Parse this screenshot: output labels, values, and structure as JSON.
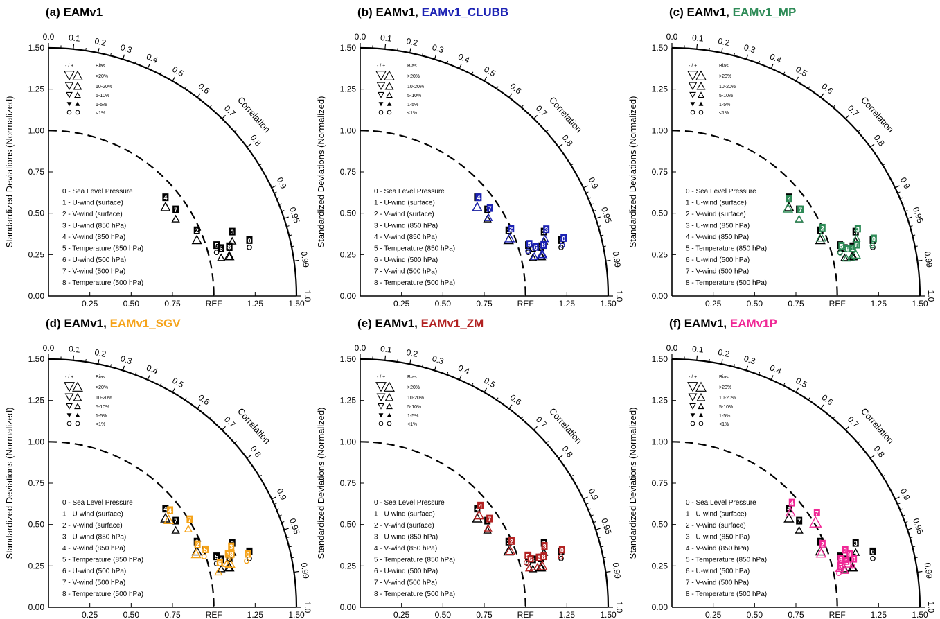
{
  "colors": {
    "ref": "#000000",
    "EAMv1_CLUBB": "#1c22b4",
    "EAMv1_MP": "#2e8b57",
    "EAMv1_SGV": "#f5a31a",
    "EAMv1_ZM": "#b22222",
    "EAMv1P": "#f02896"
  },
  "axis": {
    "ylabel": "Standardized Deviations (Normalized)",
    "yticks": [
      "0.00",
      "0.25",
      "0.50",
      "0.75",
      "1.00",
      "1.25",
      "1.50"
    ],
    "xticks": [
      "0.25",
      "0.50",
      "0.75",
      "REF",
      "1.25",
      "1.50"
    ],
    "correlation_label": "Correlation",
    "correlation_ticks": [
      "0.0",
      "0.1",
      "0.2",
      "0.3",
      "0.4",
      "0.5",
      "0.6",
      "0.7",
      "0.8",
      "0.9",
      "0.95",
      "0.99",
      "1.0"
    ]
  },
  "bias_legend": {
    "header_sign": "- / +",
    "header_bias": "Bias",
    "rows": [
      ">20%",
      "10-20%",
      "5-10%",
      "1-5%",
      "<1%"
    ]
  },
  "variables": [
    "0 - Sea Level Pressure",
    "1 - U-wind (surface)",
    "2 - V-wind (surface)",
    "3 - U-wind (850 hPa)",
    "4 - V-wind (850 hPa)",
    "5 - Temperature (850 hPa)",
    "6 - U-wind (500 hPa)",
    "7 - V-wind (500 hPa)",
    "8 - Temperature (500 hPa)"
  ],
  "panels": [
    {
      "label": "(a) EAMv1",
      "base": "",
      "comp": ""
    },
    {
      "label": "(b) ",
      "base": "EAMv1, ",
      "comp": "EAMv1_CLUBB"
    },
    {
      "label": "(c) ",
      "base": "EAMv1, ",
      "comp": "EAMv1_MP"
    },
    {
      "label": "(d) ",
      "base": "EAMv1, ",
      "comp": "EAMv1_SGV"
    },
    {
      "label": "(e) ",
      "base": "EAMv1, ",
      "comp": "EAMv1_ZM"
    },
    {
      "label": "(f) ",
      "base": "EAMv1, ",
      "comp": "EAMv1P"
    }
  ],
  "chart_data": [
    {
      "type": "scatter",
      "subtype": "taylor_diagram",
      "title": "(a) EAMv1",
      "ylim": [
        0,
        1.5
      ],
      "series": [
        {
          "name": "EAMv1",
          "points": [
            {
              "id": "0",
              "std": 1.25,
              "corr": 0.972,
              "bias": "<1%"
            },
            {
              "id": "1",
              "std": 1.12,
              "corr": 0.977,
              "bias": "5-10%"
            },
            {
              "id": "2",
              "std": 0.96,
              "corr": 0.935,
              "bias": "10-20%"
            },
            {
              "id": "3",
              "std": 1.16,
              "corr": 0.958,
              "bias": "5-10%"
            },
            {
              "id": "4",
              "std": 0.89,
              "corr": 0.795,
              "bias": "10-20%"
            },
            {
              "id": "5",
              "std": 1.05,
              "corr": 0.968,
              "bias": "<1%"
            },
            {
              "id": "6",
              "std": 1.07,
              "corr": 0.976,
              "bias": "5-10%"
            },
            {
              "id": "7",
              "std": 0.9,
              "corr": 0.855,
              "bias": "5-10%"
            },
            {
              "id": "8",
              "std": 1.12,
              "corr": 0.976,
              "bias": "10-20%"
            }
          ]
        }
      ]
    },
    {
      "type": "scatter",
      "subtype": "taylor_diagram",
      "title": "(b) EAMv1, EAMv1_CLUBB",
      "ylim": [
        0,
        1.5
      ],
      "series": [
        {
          "name": "EAMv1",
          "points": [
            {
              "id": "0",
              "std": 1.25,
              "corr": 0.972,
              "bias": "<1%"
            },
            {
              "id": "1",
              "std": 1.12,
              "corr": 0.977,
              "bias": "5-10%"
            },
            {
              "id": "2",
              "std": 0.96,
              "corr": 0.935,
              "bias": "10-20%"
            },
            {
              "id": "3",
              "std": 1.16,
              "corr": 0.958,
              "bias": "5-10%"
            },
            {
              "id": "4",
              "std": 0.89,
              "corr": 0.795,
              "bias": "10-20%"
            },
            {
              "id": "5",
              "std": 1.05,
              "corr": 0.968,
              "bias": "<1%"
            },
            {
              "id": "6",
              "std": 1.07,
              "corr": 0.976,
              "bias": "5-10%"
            },
            {
              "id": "7",
              "std": 0.9,
              "corr": 0.855,
              "bias": "5-10%"
            },
            {
              "id": "8",
              "std": 1.12,
              "corr": 0.976,
              "bias": "10-20%"
            }
          ]
        },
        {
          "name": "EAMv1_CLUBB",
          "points": [
            {
              "id": "0",
              "std": 1.26,
              "corr": 0.97,
              "bias": "<1%"
            },
            {
              "id": "1",
              "std": 1.13,
              "corr": 0.975,
              "bias": "5-10%"
            },
            {
              "id": "2",
              "std": 0.97,
              "corr": 0.932,
              "bias": "10-20%"
            },
            {
              "id": "3",
              "std": 1.17,
              "corr": 0.955,
              "bias": "5-10%"
            },
            {
              "id": "4",
              "std": 0.89,
              "corr": 0.795,
              "bias": "10-20%"
            },
            {
              "id": "5",
              "std": 1.05,
              "corr": 0.966,
              "bias": "<1%"
            },
            {
              "id": "6",
              "std": 1.08,
              "corr": 0.975,
              "bias": "5-10%"
            },
            {
              "id": "7",
              "std": 0.91,
              "corr": 0.853,
              "bias": "5-10%"
            },
            {
              "id": "8",
              "std": 1.13,
              "corr": 0.974,
              "bias": "10-20%"
            }
          ]
        }
      ]
    },
    {
      "type": "scatter",
      "subtype": "taylor_diagram",
      "title": "(c) EAMv1, EAMv1_MP",
      "ylim": [
        0,
        1.5
      ],
      "series": [
        {
          "name": "EAMv1",
          "points": [
            {
              "id": "0",
              "std": 1.25,
              "corr": 0.972,
              "bias": "<1%"
            },
            {
              "id": "1",
              "std": 1.12,
              "corr": 0.977,
              "bias": "5-10%"
            },
            {
              "id": "2",
              "std": 0.96,
              "corr": 0.935,
              "bias": "10-20%"
            },
            {
              "id": "3",
              "std": 1.16,
              "corr": 0.958,
              "bias": "5-10%"
            },
            {
              "id": "4",
              "std": 0.89,
              "corr": 0.795,
              "bias": "10-20%"
            },
            {
              "id": "5",
              "std": 1.05,
              "corr": 0.968,
              "bias": "<1%"
            },
            {
              "id": "6",
              "std": 1.07,
              "corr": 0.976,
              "bias": "5-10%"
            },
            {
              "id": "7",
              "std": 0.9,
              "corr": 0.855,
              "bias": "5-10%"
            },
            {
              "id": "8",
              "std": 1.12,
              "corr": 0.976,
              "bias": "10-20%"
            }
          ]
        },
        {
          "name": "EAMv1_MP",
          "points": [
            {
              "id": "0",
              "std": 1.25,
              "corr": 0.97,
              "bias": "<1%"
            },
            {
              "id": "1",
              "std": 1.11,
              "corr": 0.978,
              "bias": "5-10%"
            },
            {
              "id": "2",
              "std": 0.97,
              "corr": 0.93,
              "bias": "10-20%"
            },
            {
              "id": "3",
              "std": 1.17,
              "corr": 0.954,
              "bias": "5-10%"
            },
            {
              "id": "4",
              "std": 0.88,
              "corr": 0.797,
              "bias": "10-20%"
            },
            {
              "id": "5",
              "std": 1.05,
              "corr": 0.969,
              "bias": "<1%"
            },
            {
              "id": "6",
              "std": 1.08,
              "corr": 0.977,
              "bias": "5-10%"
            },
            {
              "id": "7",
              "std": 0.9,
              "corr": 0.855,
              "bias": "5-10%"
            },
            {
              "id": "8",
              "std": 1.14,
              "corr": 0.975,
              "bias": "10-20%"
            }
          ]
        }
      ]
    },
    {
      "type": "scatter",
      "subtype": "taylor_diagram",
      "title": "(d) EAMv1, EAMv1_SGV",
      "ylim": [
        0,
        1.5
      ],
      "series": [
        {
          "name": "EAMv1",
          "points": [
            {
              "id": "0",
              "std": 1.25,
              "corr": 0.972,
              "bias": "<1%"
            },
            {
              "id": "1",
              "std": 1.12,
              "corr": 0.977,
              "bias": "5-10%"
            },
            {
              "id": "2",
              "std": 0.96,
              "corr": 0.935,
              "bias": "10-20%"
            },
            {
              "id": "3",
              "std": 1.16,
              "corr": 0.958,
              "bias": "5-10%"
            },
            {
              "id": "4",
              "std": 0.89,
              "corr": 0.795,
              "bias": "10-20%"
            },
            {
              "id": "5",
              "std": 1.05,
              "corr": 0.968,
              "bias": "<1%"
            },
            {
              "id": "6",
              "std": 1.07,
              "corr": 0.976,
              "bias": "5-10%"
            },
            {
              "id": "7",
              "std": 0.9,
              "corr": 0.855,
              "bias": "5-10%"
            },
            {
              "id": "8",
              "std": 1.12,
              "corr": 0.976,
              "bias": "10-20%"
            }
          ]
        },
        {
          "name": "EAMv1_SGV",
          "points": [
            {
              "id": "0",
              "std": 1.23,
              "corr": 0.974,
              "bias": "<1%"
            },
            {
              "id": "1",
              "std": 1.11,
              "corr": 0.971,
              "bias": "5-10%"
            },
            {
              "id": "2",
              "std": 0.95,
              "corr": 0.94,
              "bias": "10-20%"
            },
            {
              "id": "3",
              "std": 1.14,
              "corr": 0.962,
              "bias": "5-10%"
            },
            {
              "id": "4",
              "std": 0.9,
              "corr": 0.808,
              "bias": "10-20%"
            },
            {
              "id": "5",
              "std": 0.99,
              "corr": 0.951,
              "bias": "<1%"
            },
            {
              "id": "6",
              "std": 1.05,
              "corr": 0.979,
              "bias": "5-10%"
            },
            {
              "id": "7",
              "std": 0.97,
              "corr": 0.872,
              "bias": "5-10%"
            },
            {
              "id": "8",
              "std": 1.13,
              "corr": 0.972,
              "bias": "10-20%"
            }
          ]
        }
      ]
    },
    {
      "type": "scatter",
      "subtype": "taylor_diagram",
      "title": "(e) EAMv1, EAMv1_ZM",
      "ylim": [
        0,
        1.5
      ],
      "series": [
        {
          "name": "EAMv1",
          "points": [
            {
              "id": "0",
              "std": 1.25,
              "corr": 0.972,
              "bias": "<1%"
            },
            {
              "id": "1",
              "std": 1.12,
              "corr": 0.977,
              "bias": "5-10%"
            },
            {
              "id": "2",
              "std": 0.96,
              "corr": 0.935,
              "bias": "10-20%"
            },
            {
              "id": "3",
              "std": 1.16,
              "corr": 0.958,
              "bias": "5-10%"
            },
            {
              "id": "4",
              "std": 0.89,
              "corr": 0.795,
              "bias": "10-20%"
            },
            {
              "id": "5",
              "std": 1.05,
              "corr": 0.968,
              "bias": "<1%"
            },
            {
              "id": "6",
              "std": 1.07,
              "corr": 0.976,
              "bias": "5-10%"
            },
            {
              "id": "7",
              "std": 0.9,
              "corr": 0.855,
              "bias": "5-10%"
            },
            {
              "id": "8",
              "std": 1.12,
              "corr": 0.976,
              "bias": "10-20%"
            }
          ]
        },
        {
          "name": "EAMv1_ZM",
          "points": [
            {
              "id": "0",
              "std": 1.25,
              "corr": 0.97,
              "bias": "<1%"
            },
            {
              "id": "1",
              "std": 1.1,
              "corr": 0.975,
              "bias": "5-10%"
            },
            {
              "id": "2",
              "std": 0.97,
              "corr": 0.935,
              "bias": "10-20%"
            },
            {
              "id": "3",
              "std": 1.15,
              "corr": 0.962,
              "bias": "5-10%"
            },
            {
              "id": "4",
              "std": 0.91,
              "corr": 0.79,
              "bias": "10-20%"
            },
            {
              "id": "5",
              "std": 1.04,
              "corr": 0.966,
              "bias": "<1%"
            },
            {
              "id": "6",
              "std": 1.05,
              "corr": 0.974,
              "bias": "5-10%"
            },
            {
              "id": "7",
              "std": 0.91,
              "corr": 0.85,
              "bias": "5-10%"
            },
            {
              "id": "8",
              "std": 1.13,
              "corr": 0.975,
              "bias": "10-20%"
            }
          ]
        }
      ]
    },
    {
      "type": "scatter",
      "subtype": "taylor_diagram",
      "title": "(f) EAMv1, EAMv1P",
      "ylim": [
        0,
        1.5
      ],
      "series": [
        {
          "name": "EAMv1",
          "points": [
            {
              "id": "0",
              "std": 1.25,
              "corr": 0.972,
              "bias": "<1%"
            },
            {
              "id": "1",
              "std": 1.12,
              "corr": 0.977,
              "bias": "5-10%"
            },
            {
              "id": "2",
              "std": 0.96,
              "corr": 0.935,
              "bias": "10-20%"
            },
            {
              "id": "3",
              "std": 1.16,
              "corr": 0.958,
              "bias": "5-10%"
            },
            {
              "id": "4",
              "std": 0.89,
              "corr": 0.795,
              "bias": "10-20%"
            },
            {
              "id": "5",
              "std": 1.05,
              "corr": 0.968,
              "bias": "<1%"
            },
            {
              "id": "6",
              "std": 1.07,
              "corr": 0.976,
              "bias": "5-10%"
            },
            {
              "id": "7",
              "std": 0.9,
              "corr": 0.855,
              "bias": "5-10%"
            },
            {
              "id": "8",
              "std": 1.12,
              "corr": 0.976,
              "bias": "10-20%"
            }
          ]
        },
        {
          "name": "EAMv1P",
          "points": [
            {
              "id": "0",
              "std": 1.12,
              "corr": 0.975,
              "bias": "<1%"
            },
            {
              "id": "1",
              "std": 1.07,
              "corr": 0.978,
              "bias": "5-10%"
            },
            {
              "id": "2",
              "std": 0.96,
              "corr": 0.94,
              "bias": "10-20%"
            },
            {
              "id": "3",
              "std": 1.08,
              "corr": 0.963,
              "bias": "5-10%"
            },
            {
              "id": "4",
              "std": 0.92,
              "corr": 0.78,
              "bias": "10-20%"
            },
            {
              "id": "5",
              "std": 1.03,
              "corr": 0.98,
              "bias": "<1%"
            },
            {
              "id": "6",
              "std": 1.04,
              "corr": 0.974,
              "bias": "5-10%"
            },
            {
              "id": "7",
              "std": 1.01,
              "corr": 0.86,
              "bias": ">20%"
            },
            {
              "id": "8",
              "std": 1.1,
              "corr": 0.97,
              "bias": "10-20%"
            }
          ]
        }
      ]
    }
  ]
}
